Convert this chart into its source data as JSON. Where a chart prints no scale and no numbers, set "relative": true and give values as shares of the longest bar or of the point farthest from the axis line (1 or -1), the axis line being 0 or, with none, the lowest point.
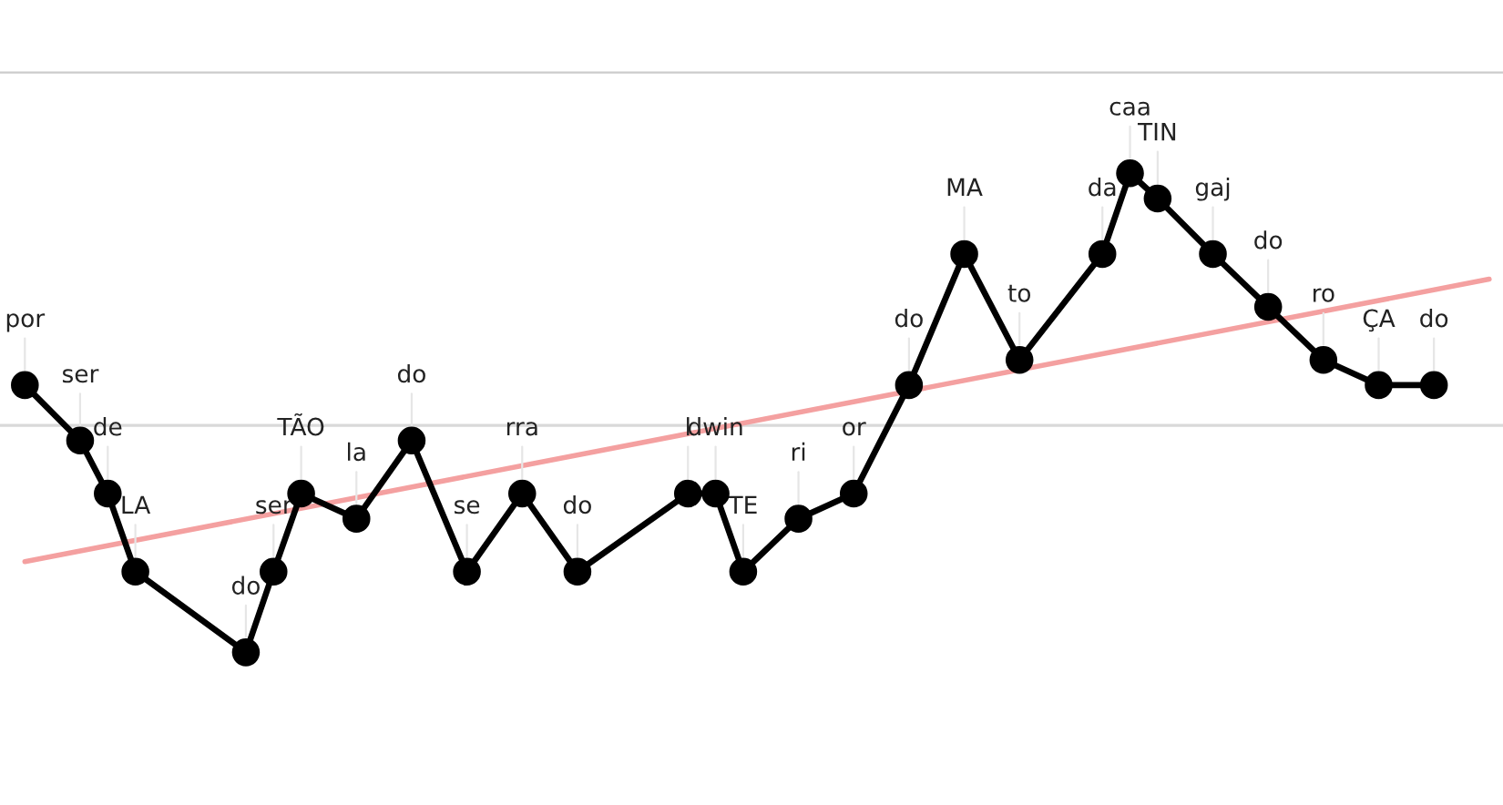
{
  "chart_data": {
    "type": "line",
    "relative": true,
    "marker": "circle",
    "line_style": "solid",
    "categories": [
      "por",
      null,
      "ser",
      "de",
      "LA",
      null,
      null,
      null,
      "do",
      "ser",
      "TÃO",
      null,
      "la",
      null,
      "do",
      null,
      "se",
      null,
      "rra",
      null,
      "do",
      null,
      null,
      null,
      "l",
      "dwin",
      "TE",
      null,
      "ri",
      null,
      "or",
      null,
      "do",
      null,
      "MA",
      null,
      "to",
      null,
      null,
      "da",
      "caa",
      "TIN",
      null,
      "gaj",
      null,
      "do",
      null,
      "ro",
      null,
      "ÇA",
      null,
      "do",
      null,
      null
    ],
    "series": [
      {
        "color": "#000000",
        "values": [
          0.16,
          null,
          -0.06,
          -0.27,
          -0.58,
          null,
          null,
          null,
          -0.9,
          -0.58,
          -0.27,
          null,
          -0.37,
          null,
          -0.06,
          null,
          -0.58,
          null,
          -0.27,
          null,
          -0.58,
          null,
          null,
          null,
          -0.27,
          -0.27,
          -0.58,
          null,
          -0.37,
          null,
          -0.27,
          null,
          0.16,
          null,
          0.68,
          null,
          0.26,
          null,
          null,
          0.68,
          1,
          0.9,
          null,
          0.68,
          null,
          0.47,
          null,
          0.26,
          null,
          0.16,
          null,
          0.16,
          null,
          null
        ]
      },
      {
        "color": "#f4a0a0",
        "marker": "none",
        "values": [
          -0.54,
          null,
          null,
          null,
          null,
          null,
          null,
          null,
          null,
          null,
          null,
          null,
          null,
          null,
          null,
          null,
          null,
          null,
          null,
          null,
          null,
          null,
          null,
          null,
          null,
          null,
          null,
          null,
          null,
          null,
          null,
          null,
          null,
          null,
          null,
          null,
          null,
          null,
          null,
          null,
          null,
          null,
          null,
          null,
          null,
          null,
          null,
          null,
          null,
          null,
          null,
          null,
          null,
          0.58
        ]
      }
    ]
  }
}
